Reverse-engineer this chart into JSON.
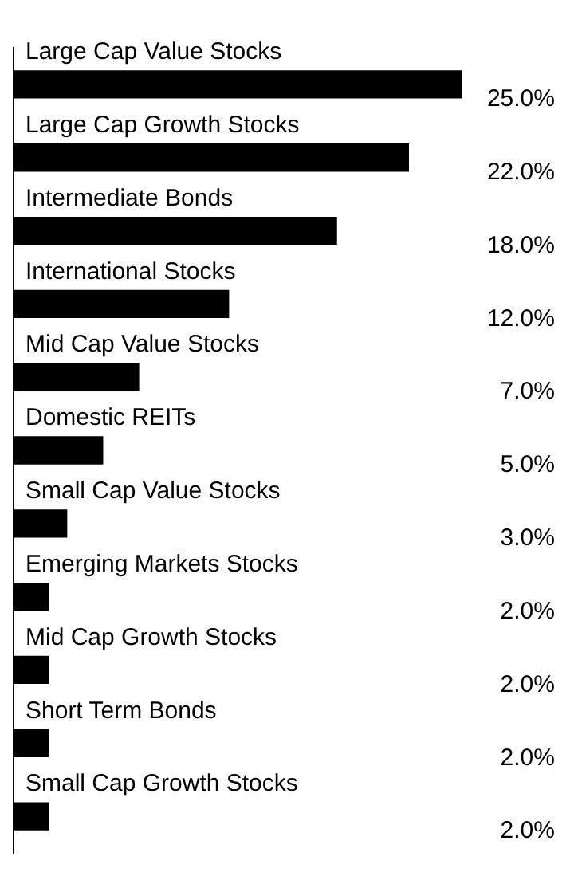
{
  "chart_data": {
    "type": "bar",
    "orientation": "horizontal",
    "categories": [
      "Large Cap Value Stocks",
      "Large Cap Growth Stocks",
      "Intermediate Bonds",
      "International Stocks",
      "Mid Cap Value Stocks",
      "Domestic REITs",
      "Small Cap Value Stocks",
      "Emerging Markets Stocks",
      "Mid Cap Growth Stocks",
      "Short Term Bonds",
      "Small Cap Growth Stocks"
    ],
    "values": [
      25.0,
      22.0,
      18.0,
      12.0,
      7.0,
      5.0,
      3.0,
      2.0,
      2.0,
      2.0,
      2.0
    ],
    "color": "#000000",
    "data_labels": true,
    "value_labels": [
      "25.0%",
      "22.0%",
      "18.0%",
      "12.0%",
      "7.0%",
      "5.0%",
      "3.0%",
      "2.0%",
      "2.0%",
      "2.0%",
      "2.0%"
    ],
    "legend": false,
    "grid": false
  }
}
